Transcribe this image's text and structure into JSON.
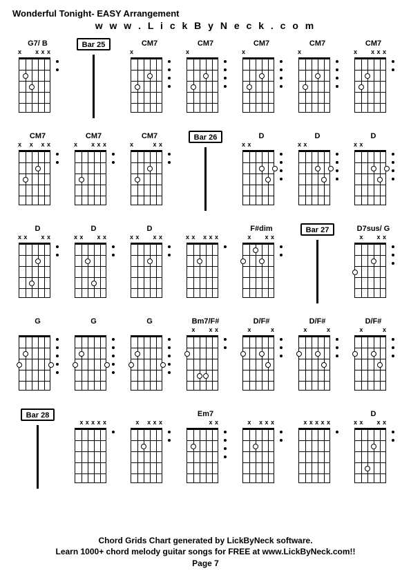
{
  "title": "Wonderful Tonight- EASY Arrangement",
  "website": "w w w . L i c k B y N e c k . c o m",
  "footer_line1": "Chord Grids Chart generated by LickByNeck software.",
  "footer_line2": "Learn 1000+ chord melody guitar songs for FREE at www.LickByNeck.com!!",
  "page_label": "Page 7",
  "layout": {
    "cols": 7,
    "rows": 5,
    "fretboard_width": 46,
    "fretboard_height": 80,
    "num_strings": 6,
    "num_frets": 5,
    "dot_size": 8
  },
  "colors": {
    "bg": "#ffffff",
    "line": "#000000",
    "text": "#000000",
    "dot_fill": "#ffffff",
    "dot_border": "#000000"
  },
  "cells": [
    {
      "type": "chord",
      "label": "G7/ B",
      "muted": [
        "x",
        "",
        "",
        "x",
        "x",
        "x"
      ],
      "dots": [
        {
          "s": 2,
          "f": 2
        },
        {
          "s": 3,
          "f": 3
        }
      ],
      "side": [
        0,
        1
      ]
    },
    {
      "type": "bar",
      "label": "Bar 25"
    },
    {
      "type": "chord",
      "label": "CM7",
      "muted": [
        "x",
        "",
        "",
        "",
        "",
        ""
      ],
      "dots": [
        {
          "s": 2,
          "f": 3
        },
        {
          "s": 4,
          "f": 2
        }
      ],
      "side": [
        0,
        1,
        2,
        3
      ]
    },
    {
      "type": "chord",
      "label": "CM7",
      "muted": [
        "x",
        "",
        "",
        "",
        "",
        ""
      ],
      "dots": [
        {
          "s": 2,
          "f": 3
        },
        {
          "s": 4,
          "f": 2
        }
      ],
      "side": [
        0,
        1,
        2,
        3
      ]
    },
    {
      "type": "chord",
      "label": "CM7",
      "muted": [
        "x",
        "",
        "",
        "",
        "",
        ""
      ],
      "dots": [
        {
          "s": 2,
          "f": 3
        },
        {
          "s": 4,
          "f": 2
        }
      ],
      "side": [
        0,
        1,
        2,
        3
      ]
    },
    {
      "type": "chord",
      "label": "CM7",
      "muted": [
        "x",
        "",
        "",
        "",
        "",
        ""
      ],
      "dots": [
        {
          "s": 2,
          "f": 3
        },
        {
          "s": 4,
          "f": 2
        }
      ],
      "side": [
        0,
        1,
        2,
        3
      ]
    },
    {
      "type": "chord",
      "label": "CM7",
      "muted": [
        "x",
        "",
        "",
        "x",
        "x",
        "x"
      ],
      "dots": [
        {
          "s": 2,
          "f": 3
        },
        {
          "s": 3,
          "f": 2
        }
      ],
      "side": [
        0,
        1
      ]
    },
    {
      "type": "chord",
      "label": "CM7",
      "muted": [
        "x",
        "",
        "x",
        "",
        "x",
        "x"
      ],
      "dots": [
        {
          "s": 2,
          "f": 3
        },
        {
          "s": 4,
          "f": 2
        }
      ],
      "side": [
        0,
        1
      ]
    },
    {
      "type": "chord",
      "label": "CM7",
      "muted": [
        "x",
        "",
        "",
        "x",
        "x",
        "x"
      ],
      "dots": [
        {
          "s": 2,
          "f": 3
        }
      ],
      "side": [
        0,
        1
      ]
    },
    {
      "type": "chord",
      "label": "CM7",
      "muted": [
        "x",
        "",
        "",
        "",
        "x",
        "x"
      ],
      "dots": [
        {
          "s": 2,
          "f": 3
        },
        {
          "s": 4,
          "f": 2
        }
      ],
      "side": [
        0,
        1
      ]
    },
    {
      "type": "bar",
      "label": "Bar 26"
    },
    {
      "type": "chord",
      "label": "D",
      "muted": [
        "x",
        "x",
        "",
        "",
        "",
        ""
      ],
      "dots": [
        {
          "s": 4,
          "f": 2
        },
        {
          "s": 5,
          "f": 3
        },
        {
          "s": 6,
          "f": 2
        }
      ],
      "side": [
        0,
        1,
        2,
        3
      ]
    },
    {
      "type": "chord",
      "label": "D",
      "muted": [
        "x",
        "x",
        "",
        "",
        "",
        ""
      ],
      "dots": [
        {
          "s": 4,
          "f": 2
        },
        {
          "s": 5,
          "f": 3
        },
        {
          "s": 6,
          "f": 2
        }
      ],
      "side": [
        0,
        1,
        2,
        3
      ]
    },
    {
      "type": "chord",
      "label": "D",
      "muted": [
        "x",
        "x",
        "",
        "",
        "",
        ""
      ],
      "dots": [
        {
          "s": 4,
          "f": 2
        },
        {
          "s": 5,
          "f": 3
        },
        {
          "s": 6,
          "f": 2
        }
      ],
      "side": [
        0,
        1,
        2,
        3
      ]
    },
    {
      "type": "chord",
      "label": "D",
      "muted": [
        "x",
        "x",
        "",
        "",
        "x",
        "x"
      ],
      "dots": [
        {
          "s": 3,
          "f": 4
        },
        {
          "s": 4,
          "f": 2
        }
      ],
      "side": [
        0,
        1
      ]
    },
    {
      "type": "chord",
      "label": "D",
      "muted": [
        "x",
        "x",
        "",
        "",
        "x",
        "x"
      ],
      "dots": [
        {
          "s": 3,
          "f": 2
        },
        {
          "s": 4,
          "f": 4
        }
      ],
      "side": [
        0,
        1
      ]
    },
    {
      "type": "chord",
      "label": "D",
      "muted": [
        "x",
        "x",
        "",
        "",
        "x",
        "x"
      ],
      "dots": [
        {
          "s": 4,
          "f": 2
        }
      ],
      "side": [
        0,
        1
      ]
    },
    {
      "type": "chord",
      "label": "",
      "muted": [
        "x",
        "x",
        "",
        "x",
        "x",
        "x"
      ],
      "dots": [
        {
          "s": 3,
          "f": 2
        }
      ],
      "side": [
        0
      ]
    },
    {
      "type": "chord",
      "label": "F#dim",
      "muted": [
        "",
        "x",
        "",
        "",
        "x",
        "x"
      ],
      "dots": [
        {
          "s": 1,
          "f": 2
        },
        {
          "s": 3,
          "f": 1
        },
        {
          "s": 4,
          "f": 2
        }
      ],
      "side": [
        0,
        1
      ]
    },
    {
      "type": "bar",
      "label": "Bar 27"
    },
    {
      "type": "chord",
      "label": "D7sus/ G",
      "muted": [
        "",
        "x",
        "",
        "",
        "x",
        "x"
      ],
      "dots": [
        {
          "s": 1,
          "f": 3
        },
        {
          "s": 4,
          "f": 2
        }
      ],
      "side": [
        0,
        1,
        2
      ]
    },
    {
      "type": "chord",
      "label": "G",
      "muted": [
        "",
        "",
        "",
        "",
        "",
        ""
      ],
      "dots": [
        {
          "s": 1,
          "f": 3
        },
        {
          "s": 2,
          "f": 2
        },
        {
          "s": 6,
          "f": 3
        }
      ],
      "side": [
        0,
        1,
        2,
        3,
        4
      ]
    },
    {
      "type": "chord",
      "label": "G",
      "muted": [
        "",
        "",
        "",
        "",
        "",
        ""
      ],
      "dots": [
        {
          "s": 1,
          "f": 3
        },
        {
          "s": 2,
          "f": 2
        },
        {
          "s": 6,
          "f": 3
        }
      ],
      "side": [
        0,
        1,
        2,
        3,
        4
      ]
    },
    {
      "type": "chord",
      "label": "G",
      "muted": [
        "",
        "",
        "",
        "",
        "",
        ""
      ],
      "dots": [
        {
          "s": 1,
          "f": 3
        },
        {
          "s": 2,
          "f": 2
        },
        {
          "s": 6,
          "f": 3
        }
      ],
      "side": [
        0,
        1,
        2,
        3,
        4
      ]
    },
    {
      "type": "chord",
      "label": "Bm7/F#",
      "muted": [
        "",
        "x",
        "",
        "",
        "x",
        "x"
      ],
      "dots": [
        {
          "s": 1,
          "f": 2
        },
        {
          "s": 4,
          "f": 4
        },
        {
          "s": 3,
          "f": 4
        }
      ],
      "side": [
        0,
        1
      ]
    },
    {
      "type": "chord",
      "label": "D/F#",
      "muted": [
        "",
        "x",
        "",
        "",
        "",
        "x"
      ],
      "dots": [
        {
          "s": 1,
          "f": 2
        },
        {
          "s": 4,
          "f": 2
        },
        {
          "s": 5,
          "f": 3
        }
      ],
      "side": [
        0,
        1,
        2
      ]
    },
    {
      "type": "chord",
      "label": "D/F#",
      "muted": [
        "",
        "x",
        "",
        "",
        "",
        "x"
      ],
      "dots": [
        {
          "s": 1,
          "f": 2
        },
        {
          "s": 4,
          "f": 2
        },
        {
          "s": 5,
          "f": 3
        }
      ],
      "side": [
        0,
        1,
        2
      ]
    },
    {
      "type": "chord",
      "label": "D/F#",
      "muted": [
        "",
        "x",
        "",
        "",
        "",
        "x"
      ],
      "dots": [
        {
          "s": 1,
          "f": 2
        },
        {
          "s": 4,
          "f": 2
        },
        {
          "s": 5,
          "f": 3
        }
      ],
      "side": [
        0,
        1,
        2
      ]
    },
    {
      "type": "bar",
      "label": "Bar 28"
    },
    {
      "type": "chord",
      "label": "",
      "muted": [
        "",
        "x",
        "x",
        "x",
        "x",
        "x"
      ],
      "dots": [],
      "side": [
        0
      ]
    },
    {
      "type": "chord",
      "label": "",
      "muted": [
        "",
        "x",
        "",
        "x",
        "x",
        "x"
      ],
      "dots": [
        {
          "s": 3,
          "f": 2
        }
      ],
      "side": [
        0,
        1
      ]
    },
    {
      "type": "chord",
      "label": "Em7",
      "muted": [
        "",
        "",
        "",
        "",
        "x",
        "x"
      ],
      "dots": [
        {
          "s": 2,
          "f": 2
        }
      ],
      "side": [
        0,
        1,
        2,
        3
      ]
    },
    {
      "type": "chord",
      "label": "",
      "muted": [
        "",
        "x",
        "",
        "x",
        "x",
        "x"
      ],
      "dots": [
        {
          "s": 3,
          "f": 2
        }
      ],
      "side": [
        0,
        1
      ]
    },
    {
      "type": "chord",
      "label": "",
      "muted": [
        "",
        "x",
        "x",
        "x",
        "x",
        "x"
      ],
      "dots": [],
      "side": [
        0
      ]
    },
    {
      "type": "chord",
      "label": "D",
      "muted": [
        "x",
        "x",
        "",
        "",
        "x",
        "x"
      ],
      "dots": [
        {
          "s": 3,
          "f": 4
        },
        {
          "s": 4,
          "f": 2
        }
      ],
      "side": [
        0,
        1
      ]
    }
  ]
}
